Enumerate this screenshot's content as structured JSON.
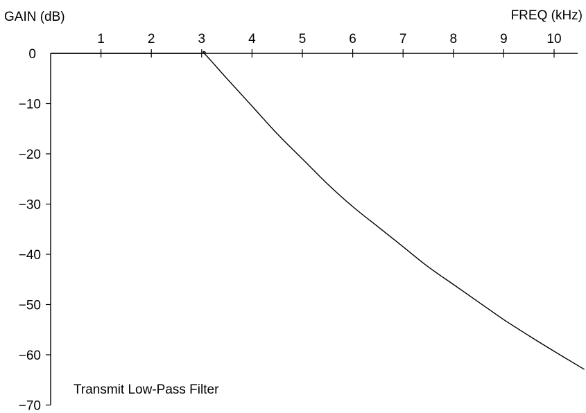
{
  "chart_data": {
    "type": "line",
    "title": "",
    "annotation": "Transmit Low-Pass Filter",
    "xlabel": "FREQ (kHz)",
    "ylabel": "GAIN (dB)",
    "xlim": [
      0,
      10.5
    ],
    "ylim": [
      -70,
      0
    ],
    "x_ticks": [
      1,
      2,
      3,
      4,
      5,
      6,
      7,
      8,
      9,
      10
    ],
    "x_tick_labels": [
      "1",
      "2",
      "3",
      "4",
      "5",
      "6",
      "7",
      "8",
      "9",
      "10"
    ],
    "y_ticks": [
      0,
      -10,
      -20,
      -30,
      -40,
      -50,
      -60,
      -70
    ],
    "y_tick_labels": [
      "0",
      "−10",
      "−20",
      "−30",
      "−40",
      "−50",
      "−60",
      "−70"
    ],
    "grid": false,
    "legend": "none",
    "series": [
      {
        "x": [
          0,
          1,
          2,
          3,
          3.05,
          3.5,
          4,
          4.5,
          5,
          5.5,
          6,
          6.5,
          7,
          7.5,
          8,
          8.5,
          9,
          9.5,
          10,
          10.5,
          10.6
        ],
        "y": [
          0,
          0,
          0,
          0,
          0,
          -5,
          -10.5,
          -16,
          -21,
          -26,
          -30.5,
          -34.5,
          -38.5,
          -42.5,
          -46,
          -49.5,
          -53,
          -56.2,
          -59.3,
          -62.3,
          -62.9
        ]
      }
    ]
  }
}
